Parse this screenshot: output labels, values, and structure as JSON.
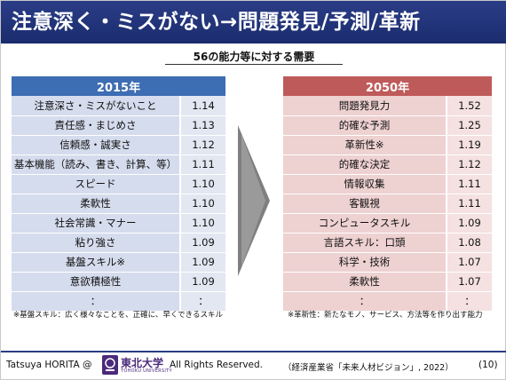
{
  "title": "注意深く・ミスがない→問題発見/予測/革新",
  "subtitle": "56の能力等に対する需要",
  "left_table": {
    "header": "2015年",
    "rows": [
      {
        "label": "注意深さ・ミスがないこと",
        "value": "1.14"
      },
      {
        "label": "責任感・まじめさ",
        "value": "1.13"
      },
      {
        "label": "信頼感・誠実さ",
        "value": "1.12"
      },
      {
        "label": "基本機能（読み、書き、計算、等）",
        "value": "1.11"
      },
      {
        "label": "スピード",
        "value": "1.10"
      },
      {
        "label": "柔軟性",
        "value": "1.10"
      },
      {
        "label": "社会常識・マナー",
        "value": "1.10"
      },
      {
        "label": "粘り強さ",
        "value": "1.09"
      },
      {
        "label": "基盤スキル※",
        "value": "1.09"
      },
      {
        "label": "意欲積極性",
        "value": "1.09"
      },
      {
        "label": "：",
        "value": "："
      }
    ],
    "note": "※基盤スキル：広く様々なことを、正確に、早くできるスキル"
  },
  "right_table": {
    "header": "2050年",
    "rows": [
      {
        "label": "問題発見力",
        "value": "1.52"
      },
      {
        "label": "的確な予測",
        "value": "1.25"
      },
      {
        "label": "革新性※",
        "value": "1.19"
      },
      {
        "label": "的確な決定",
        "value": "1.12"
      },
      {
        "label": "情報収集",
        "value": "1.11"
      },
      {
        "label": "客観視",
        "value": "1.11"
      },
      {
        "label": "コンピュータスキル",
        "value": "1.09"
      },
      {
        "label": "言語スキル：口頭",
        "value": "1.08"
      },
      {
        "label": "科学・技術",
        "value": "1.07"
      },
      {
        "label": "柔軟性",
        "value": "1.07"
      },
      {
        "label": "：",
        "value": "："
      }
    ],
    "note": "※革新性：新たなモノ、サービス、方法等を作り出す能力"
  },
  "footer": {
    "author": "Tatsuya HORITA @",
    "university_jp": "東北大学",
    "university_en": "TOHOKU UNIVERSITY",
    "rights": "All Rights Reserved.",
    "source": "（経済産業省「未来人材ビジョン」, 2022）",
    "page": "(10)"
  },
  "colors": {
    "title_bar": "#1b2c6e",
    "left_header": "#3d6db2",
    "left_cell": "#d5dced",
    "right_header": "#bf5a5a",
    "right_cell": "#eed1d1",
    "arrow": "#7f7f7f"
  }
}
